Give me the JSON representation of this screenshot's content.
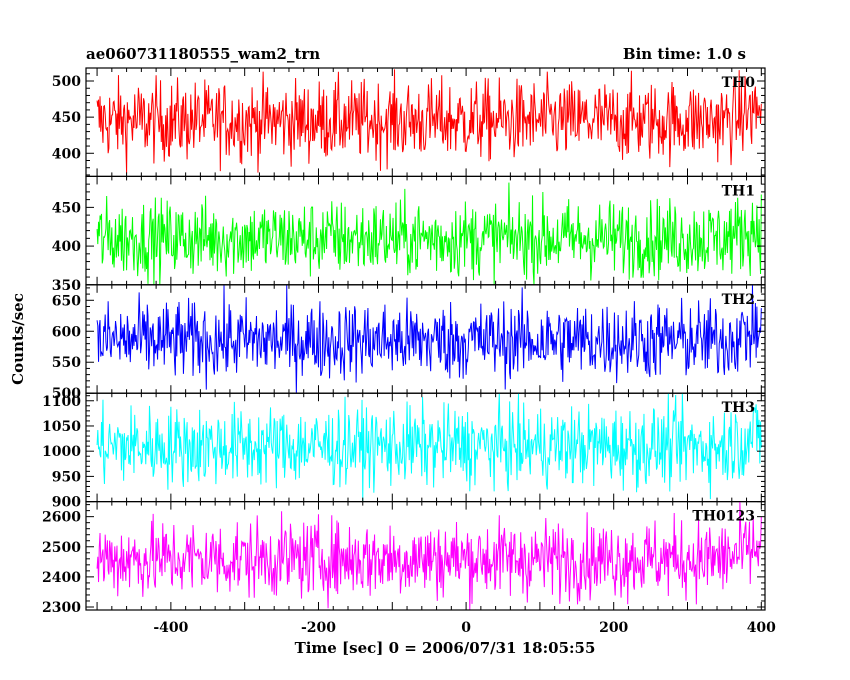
{
  "title_left": "ae060731180555_wam2_trn",
  "title_right": "Bin time: 1.0 s",
  "chart_data": {
    "type": "line",
    "xlabel": "Time [sec] 0 = 2006/07/31 18:05:55",
    "ylabel": "Counts/sec",
    "xlim": [
      -515,
      405
    ],
    "x_range": [
      -500,
      400
    ],
    "xticks": [
      -400,
      -200,
      0,
      200,
      400
    ],
    "panels": [
      {
        "name": "TH0",
        "color": "#ff0000",
        "ylim": [
          368,
          518
        ],
        "yticks": [
          400,
          450,
          500
        ],
        "mean": 445,
        "spread": 28
      },
      {
        "name": "TH1",
        "color": "#00ff00",
        "ylim": [
          350,
          490
        ],
        "yticks": [
          350,
          400,
          450
        ],
        "mean": 410,
        "spread": 25
      },
      {
        "name": "TH2",
        "color": "#0000ff",
        "ylim": [
          500,
          675
        ],
        "yticks": [
          500,
          550,
          600,
          650
        ],
        "mean": 585,
        "spread": 32
      },
      {
        "name": "TH3",
        "color": "#00ffff",
        "ylim": [
          900,
          1115
        ],
        "yticks": [
          900,
          950,
          1000,
          1050,
          1100
        ],
        "mean": 1010,
        "spread": 40
      },
      {
        "name": "TH0123",
        "color": "#ff00ff",
        "ylim": [
          2290,
          2650
        ],
        "yticks": [
          2300,
          2400,
          2500,
          2600
        ],
        "mean": 2460,
        "spread": 65
      }
    ]
  }
}
